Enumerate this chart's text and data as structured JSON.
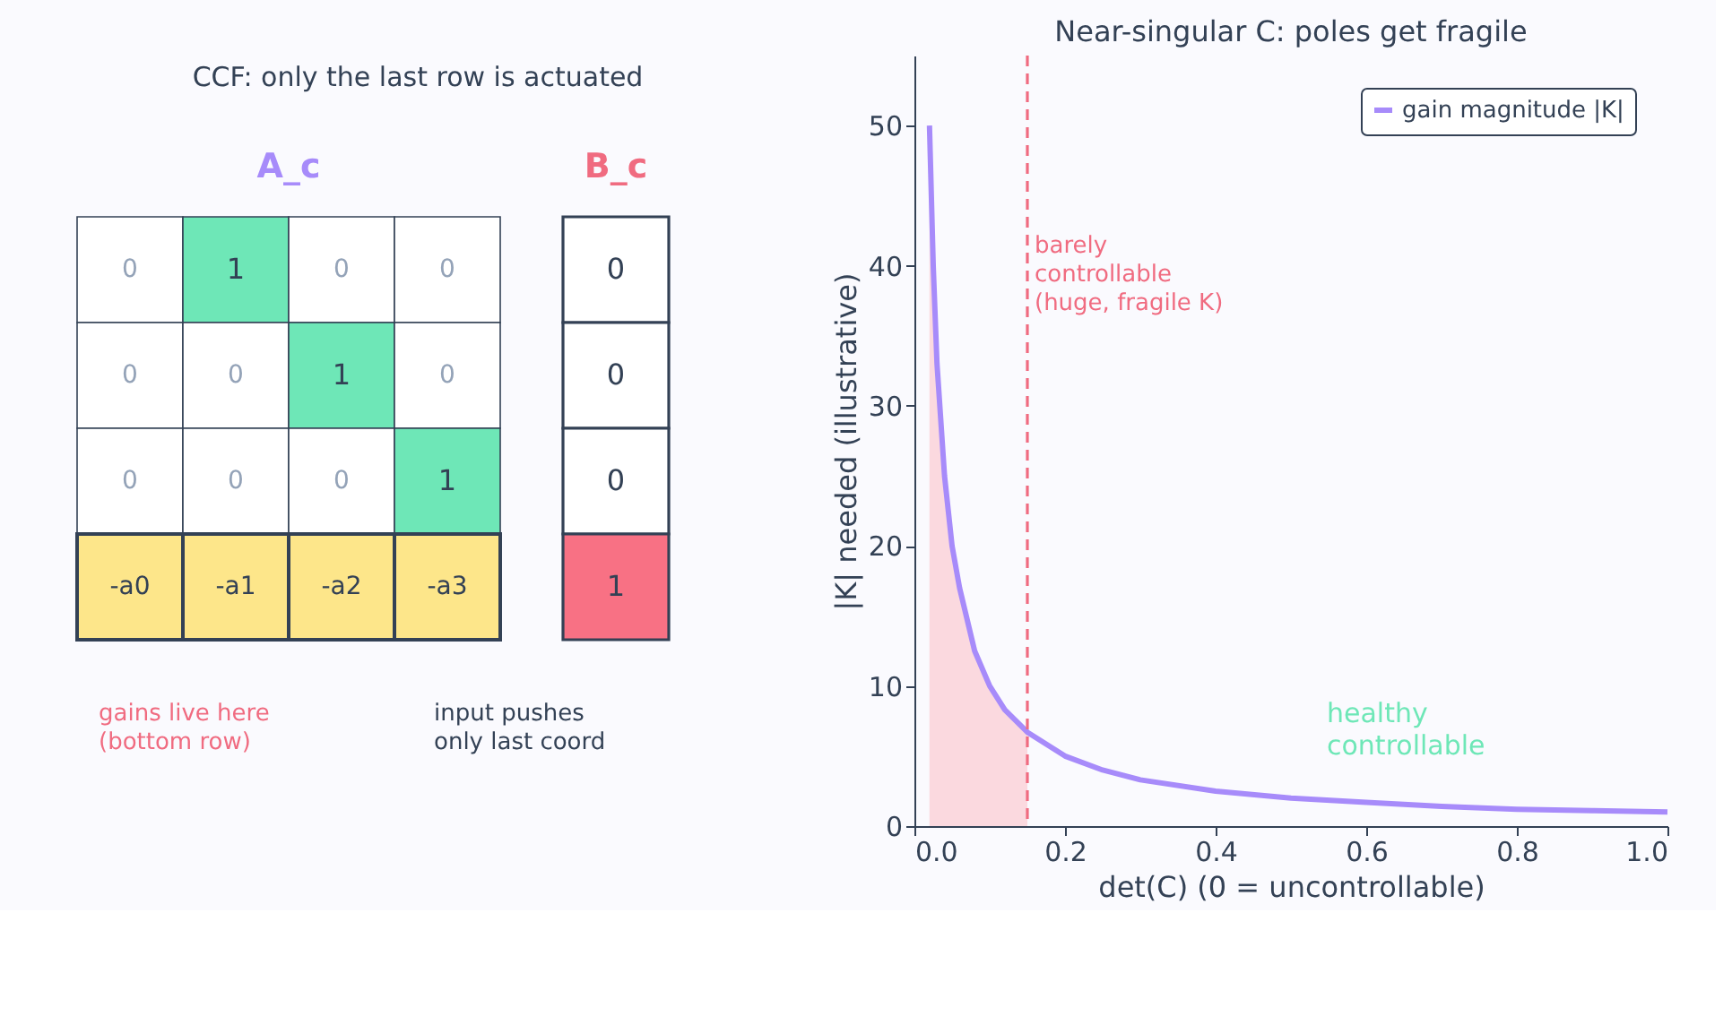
{
  "chart_data": [
    {
      "type": "other",
      "title": "CCF: only the last row is actuated",
      "annotations": [
        "A_c",
        "B_c",
        "0",
        "1",
        "0",
        "0",
        "0",
        "0",
        "1",
        "0",
        "0",
        "0",
        "0",
        "1",
        "-a0",
        "-a1",
        "-a2",
        "-a3",
        "0",
        "0",
        "0",
        "1",
        "gains live here\n(bottom row)",
        "input pushes\nonly last coord"
      ]
    },
    {
      "type": "line",
      "title": "Near-singular C: poles get fragile",
      "xlabel": "det(C)  (0 = uncontrollable)",
      "ylabel": "|K| needed  (illustrative)",
      "x": [
        0.02,
        0.025,
        0.03,
        0.04,
        0.05,
        0.06,
        0.08,
        0.1,
        0.12,
        0.15,
        0.2,
        0.25,
        0.3,
        0.4,
        0.5,
        0.6,
        0.7,
        0.8,
        0.9,
        1.0
      ],
      "series": [
        {
          "name": "gain magnitude |K|",
          "color": "#a78bfa",
          "values": [
            50,
            40,
            33,
            25,
            20,
            17,
            12.5,
            10,
            8.3,
            6.7,
            5,
            4,
            3.3,
            2.5,
            2,
            1.7,
            1.4,
            1.2,
            1.1,
            1
          ]
        },
        {
          "type": "area",
          "color": "#fbd5dc",
          "x": [
            0.02,
            0.025,
            0.03,
            0.04,
            0.05,
            0.06,
            0.08,
            0.1,
            0.12,
            0.15
          ],
          "values": [
            50,
            40,
            33,
            25,
            20,
            17,
            12.5,
            10,
            8.3,
            6.7
          ]
        }
      ],
      "xlim": [
        0,
        1
      ],
      "xticks": [
        {
          "value": 0,
          "label": "0.0"
        },
        0.2,
        0.4,
        0.6,
        0.8,
        {
          "value": 1,
          "label": "1.0"
        }
      ],
      "ylim": [
        0,
        55
      ],
      "yticks": [
        0,
        10,
        20,
        30,
        40,
        50
      ],
      "ref_lines": [
        {
          "axis": "x",
          "value": 0.15,
          "label": "barely\ncontrollable\n(huge, fragile K)",
          "color": "#f06b80",
          "line_style": "dashed"
        }
      ],
      "annotations": [
        "healthy\ncontrollable"
      ],
      "legend": "top right",
      "grid": false
    }
  ]
}
